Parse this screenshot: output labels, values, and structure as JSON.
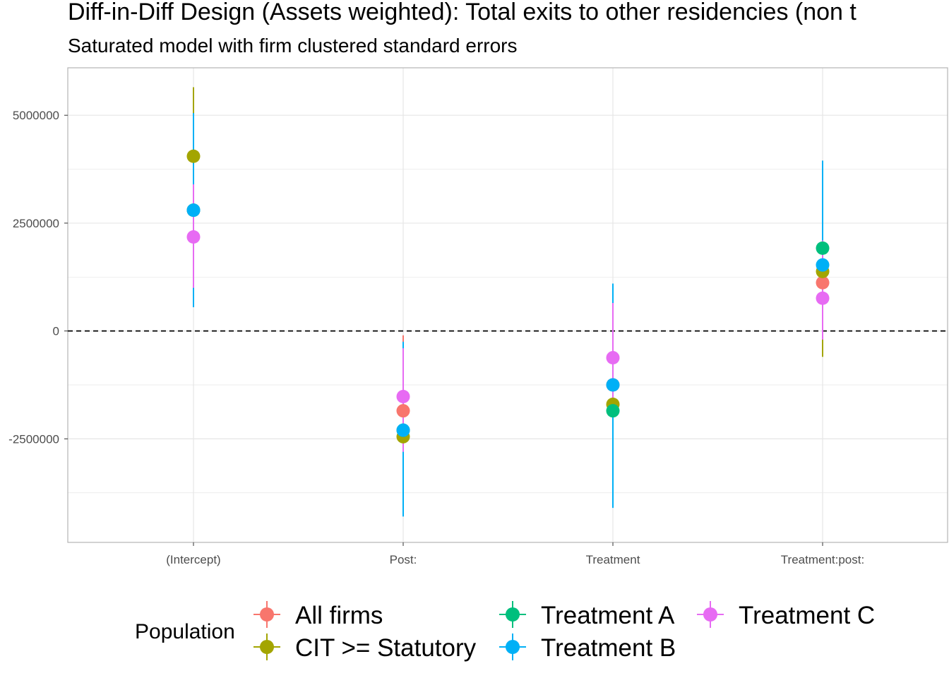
{
  "chart_data": {
    "type": "scatter",
    "title": "Diff-in-Diff Design (Assets weighted): Total exits to other residencies (non t",
    "subtitle": "Saturated model with firm clustered standard errors",
    "xlabel": "",
    "ylabel": "",
    "categories": [
      "(Intercept)",
      "Post:",
      "Treatment",
      "Treatment:post:"
    ],
    "ylim": [
      -4900000,
      6100000
    ],
    "yticks": [
      -2500000,
      0,
      2500000,
      5000000
    ],
    "ytick_labels": [
      "-2500000",
      "0",
      "2500000",
      "5000000"
    ],
    "reference_line": 0,
    "grid": true,
    "legend": {
      "title": "Population",
      "position": "bottom"
    },
    "series": [
      {
        "name": "All firms",
        "color": "#F8766D",
        "values": [
          2800000,
          -1850000,
          -1250000,
          1120000
        ],
        "lower": [
          1100000,
          -3600000,
          -3700000,
          -500000
        ],
        "upper": [
          4500000,
          -100000,
          1100000,
          2700000
        ]
      },
      {
        "name": "CIT >= Statutory",
        "color": "#A3A500",
        "values": [
          4050000,
          -2450000,
          -1700000,
          1380000
        ],
        "lower": [
          2500000,
          -4100000,
          -3800000,
          -600000
        ],
        "upper": [
          5650000,
          -800000,
          400000,
          3400000
        ]
      },
      {
        "name": "Treatment A",
        "color": "#00BF7D",
        "values": [
          2800000,
          -2300000,
          -1850000,
          1920000
        ],
        "lower": [
          1000000,
          -4050000,
          -4000000,
          250000
        ],
        "upper": [
          4600000,
          -550000,
          300000,
          3600000
        ]
      },
      {
        "name": "Treatment B",
        "color": "#00B0F6",
        "values": [
          2800000,
          -2300000,
          -1250000,
          1530000
        ],
        "lower": [
          550000,
          -4300000,
          -4100000,
          -100000
        ],
        "upper": [
          5050000,
          -250000,
          1100000,
          3950000
        ]
      },
      {
        "name": "Treatment C",
        "color": "#E76BF3",
        "values": [
          2180000,
          -1520000,
          -620000,
          760000
        ],
        "lower": [
          1000000,
          -2800000,
          -1800000,
          -200000
        ],
        "upper": [
          3400000,
          -400000,
          650000,
          2100000
        ]
      }
    ]
  }
}
